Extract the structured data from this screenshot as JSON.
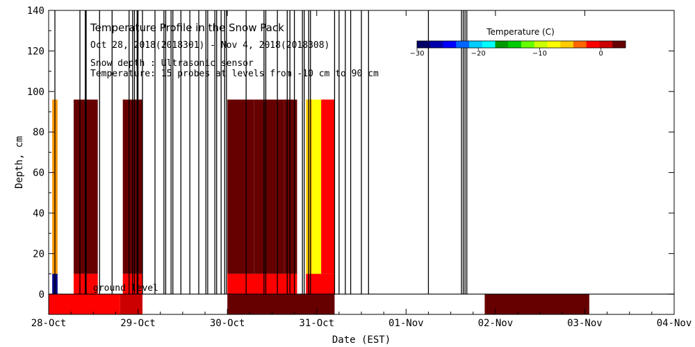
{
  "chart_data": {
    "type": "heatmap",
    "title": "Temperature Profile in the Snow Pack",
    "subtitle": "Oct 28, 2018(2018301) - Nov  4, 2018(2018308)",
    "annotations": [
      "Snow depth : Ultrasonic sensor",
      "Temperature: 15 probes at levels from -10 cm to 90 cm"
    ],
    "ground_label": "ground level",
    "xlabel": "Date (EST)",
    "ylabel": "Depth, cm",
    "x_ticks": [
      "28-Oct",
      "29-Oct",
      "30-Oct",
      "31-Oct",
      "01-Nov",
      "02-Nov",
      "03-Nov",
      "04-Nov"
    ],
    "xlim": [
      0,
      7
    ],
    "ylim": [
      -10,
      140
    ],
    "y_ticks": [
      0,
      20,
      40,
      60,
      80,
      100,
      120,
      140
    ],
    "colorbar": {
      "title": "Temperature (C)",
      "ticks": [
        -30,
        -20,
        -10,
        0
      ],
      "range": [
        -30,
        4
      ],
      "colors": [
        "#000066",
        "#0000aa",
        "#0000ff",
        "#0066ff",
        "#00ccff",
        "#00ffff",
        "#009900",
        "#00cc00",
        "#66ff00",
        "#ccff00",
        "#ffff00",
        "#ffcc00",
        "#ff6600",
        "#ff0000",
        "#cc0000",
        "#660000"
      ]
    },
    "temperature_blocks": [
      {
        "start": 0.04,
        "end": 0.1,
        "depth_bottom": 10,
        "depth_top": 96,
        "color": "#ff9900"
      },
      {
        "start": 0.04,
        "end": 0.1,
        "depth_bottom": 0,
        "depth_top": 10,
        "color": "#000088"
      },
      {
        "start": 0.28,
        "end": 0.55,
        "depth_bottom": 10,
        "depth_top": 96,
        "color": "#660000"
      },
      {
        "start": 0.28,
        "end": 0.55,
        "depth_bottom": 0,
        "depth_top": 10,
        "color": "#ff0000"
      },
      {
        "start": 0.83,
        "end": 1.05,
        "depth_bottom": 10,
        "depth_top": 96,
        "color": "#660000"
      },
      {
        "start": 0.83,
        "end": 1.05,
        "depth_bottom": 0,
        "depth_top": 10,
        "color": "#ff0000"
      },
      {
        "start": 0.0,
        "end": 0.8,
        "depth_bottom": -10,
        "depth_top": 0,
        "color": "#ff0000"
      },
      {
        "start": 0.8,
        "end": 1.05,
        "depth_bottom": -10,
        "depth_top": 0,
        "color": "#cc0000"
      },
      {
        "start": 2.0,
        "end": 2.3,
        "depth_bottom": 10,
        "depth_top": 96,
        "color": "#660000"
      },
      {
        "start": 2.3,
        "end": 2.63,
        "depth_bottom": 10,
        "depth_top": 96,
        "color": "#660000"
      },
      {
        "start": 2.63,
        "end": 2.78,
        "depth_bottom": 10,
        "depth_top": 96,
        "color": "#660000"
      },
      {
        "start": 2.0,
        "end": 2.78,
        "depth_bottom": 0,
        "depth_top": 10,
        "color": "#ff0000"
      },
      {
        "start": 2.88,
        "end": 2.95,
        "depth_bottom": 10,
        "depth_top": 96,
        "color": "#ffcc00"
      },
      {
        "start": 2.95,
        "end": 3.05,
        "depth_bottom": 10,
        "depth_top": 96,
        "color": "#ffff00"
      },
      {
        "start": 3.05,
        "end": 3.2,
        "depth_bottom": 10,
        "depth_top": 96,
        "color": "#ff0000"
      },
      {
        "start": 2.88,
        "end": 3.2,
        "depth_bottom": 0,
        "depth_top": 10,
        "color": "#ff0000"
      },
      {
        "start": 2.0,
        "end": 3.2,
        "depth_bottom": -10,
        "depth_top": 0,
        "color": "#660000"
      },
      {
        "start": 4.88,
        "end": 6.05,
        "depth_bottom": -10,
        "depth_top": 0,
        "color": "#660000"
      }
    ],
    "snow_depth_spikes": [
      0.07,
      0.35,
      0.41,
      0.42,
      0.57,
      0.71,
      0.9,
      0.94,
      0.96,
      0.99,
      1.0,
      1.05,
      1.19,
      1.29,
      1.31,
      1.37,
      1.39,
      1.48,
      1.58,
      1.68,
      1.76,
      1.78,
      1.86,
      1.88,
      1.93,
      1.97,
      1.99,
      2.21,
      2.41,
      2.43,
      2.56,
      2.67,
      2.7,
      2.75,
      2.84,
      2.86,
      2.91,
      2.93,
      3.2,
      3.25,
      3.32,
      3.38,
      3.5,
      3.58,
      4.25,
      4.62,
      4.64,
      4.66,
      4.68
    ]
  }
}
